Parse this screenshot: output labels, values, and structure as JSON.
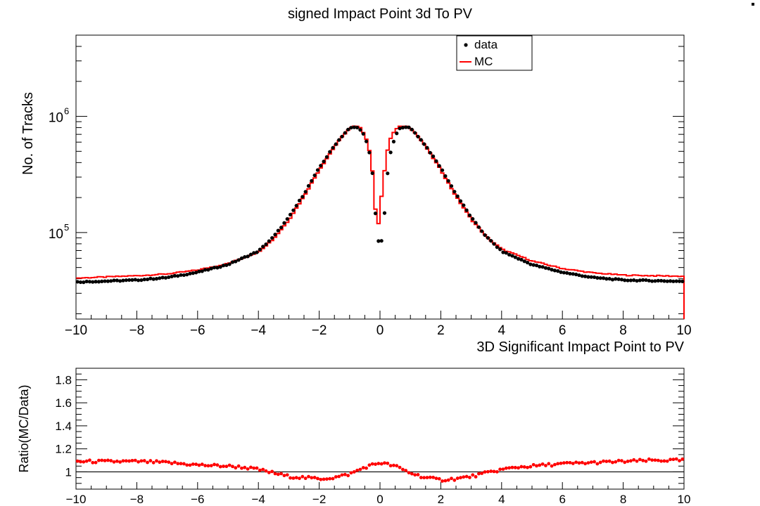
{
  "chart_data": [
    {
      "type": "step-and-scatter",
      "title": "signed Impact Point 3d To PV",
      "xlabel": "3D Significant Impact Point to PV",
      "ylabel": "No. of Tracks",
      "xlim": [
        -10,
        10
      ],
      "ylim": [
        18000,
        5000000
      ],
      "yscale": "log",
      "x_ticks": [
        "−10",
        "−8",
        "−6",
        "−4",
        "−2",
        "0",
        "2",
        "4",
        "6",
        "8",
        "10"
      ],
      "x_tick_values": [
        -10,
        -8,
        -6,
        -4,
        -2,
        0,
        2,
        4,
        6,
        8,
        10
      ],
      "y_tick_labels": [
        {
          "base": "10",
          "exp": "5",
          "value": 100000
        },
        {
          "base": "10",
          "exp": "6",
          "value": 1000000
        }
      ],
      "legend": {
        "placement": "top-center",
        "entries": [
          {
            "label": "data",
            "marker": "dot",
            "color": "#000000"
          },
          {
            "label": "MC",
            "marker": "line",
            "color": "#ff0000"
          }
        ]
      },
      "series": [
        {
          "name": "data",
          "style": "points",
          "color": "#000000",
          "points": [
            [
              -10,
              37500
            ],
            [
              -9,
              38200
            ],
            [
              -8,
              39000
            ],
            [
              -7,
              41000
            ],
            [
              -6,
              45500
            ],
            [
              -5,
              53000
            ],
            [
              -4,
              69000
            ],
            [
              -3.5,
              92000
            ],
            [
              -3,
              135000
            ],
            [
              -2.5,
              215000
            ],
            [
              -2,
              360000
            ],
            [
              -1.5,
              560000
            ],
            [
              -1.2,
              700000
            ],
            [
              -1,
              790000
            ],
            [
              -0.8,
              810000
            ],
            [
              -0.6,
              760000
            ],
            [
              -0.4,
              560000
            ],
            [
              -0.3,
              420000
            ],
            [
              -0.2,
              250000
            ],
            [
              -0.1,
              85000
            ],
            [
              0.1,
              85000
            ],
            [
              0.2,
              250000
            ],
            [
              0.3,
              420000
            ],
            [
              0.4,
              560000
            ],
            [
              0.6,
              770000
            ],
            [
              0.8,
              820000
            ],
            [
              1,
              790000
            ],
            [
              1.2,
              700000
            ],
            [
              1.5,
              560000
            ],
            [
              2,
              360000
            ],
            [
              2.5,
              215000
            ],
            [
              3,
              135000
            ],
            [
              3.5,
              92000
            ],
            [
              4,
              69000
            ],
            [
              5,
              53000
            ],
            [
              6,
              45500
            ],
            [
              7,
              41000
            ],
            [
              8,
              39000
            ],
            [
              9,
              38500
            ],
            [
              10,
              38000
            ]
          ]
        },
        {
          "name": "MC",
          "style": "step",
          "color": "#ff0000",
          "points": [
            [
              -10,
              40500
            ],
            [
              -9,
              41500
            ],
            [
              -8,
              42500
            ],
            [
              -7,
              44000
            ],
            [
              -6,
              47500
            ],
            [
              -5,
              54000
            ],
            [
              -4,
              68000
            ],
            [
              -3.5,
              88000
            ],
            [
              -3,
              128000
            ],
            [
              -2.5,
              205000
            ],
            [
              -2,
              345000
            ],
            [
              -1.5,
              545000
            ],
            [
              -1.2,
              690000
            ],
            [
              -1,
              785000
            ],
            [
              -0.8,
              830000
            ],
            [
              -0.6,
              780000
            ],
            [
              -0.4,
              600000
            ],
            [
              -0.3,
              430000
            ],
            [
              -0.2,
              270000
            ],
            [
              -0.1,
              92000
            ],
            [
              0.1,
              270000
            ],
            [
              0.2,
              430000
            ],
            [
              0.3,
              600000
            ],
            [
              0.4,
              700000
            ],
            [
              0.6,
              810000
            ],
            [
              0.8,
              830000
            ],
            [
              1,
              790000
            ],
            [
              1.2,
              700000
            ],
            [
              1.5,
              550000
            ],
            [
              2,
              345000
            ],
            [
              2.5,
              205000
            ],
            [
              3,
              130000
            ],
            [
              3.5,
              92000
            ],
            [
              4,
              72000
            ],
            [
              5,
              57000
            ],
            [
              6,
              49000
            ],
            [
              7,
              45000
            ],
            [
              8,
              43000
            ],
            [
              9,
              42500
            ],
            [
              10,
              42000
            ]
          ]
        }
      ]
    },
    {
      "type": "scatter",
      "xlabel": "",
      "ylabel": "Ratio(MC/Data)",
      "xlim": [
        -10,
        10
      ],
      "ylim": [
        0.85,
        1.9
      ],
      "x_ticks": [
        "−10",
        "−8",
        "−6",
        "−4",
        "−2",
        "0",
        "2",
        "4",
        "6",
        "8",
        "10"
      ],
      "x_tick_values": [
        -10,
        -8,
        -6,
        -4,
        -2,
        0,
        2,
        4,
        6,
        8,
        10
      ],
      "y_ticks": [
        "1",
        "1.2",
        "1.4",
        "1.6",
        "1.8"
      ],
      "y_tick_values": [
        1,
        1.2,
        1.4,
        1.6,
        1.8
      ],
      "reference_line": 1,
      "series": [
        {
          "name": "",
          "color": "#ff0000",
          "points": [
            [
              -10,
              1.09
            ],
            [
              -9,
              1.09
            ],
            [
              -8,
              1.09
            ],
            [
              -7,
              1.08
            ],
            [
              -6,
              1.06
            ],
            [
              -5,
              1.05
            ],
            [
              -4.5,
              1.04
            ],
            [
              -4,
              1.02
            ],
            [
              -3.5,
              0.99
            ],
            [
              -3,
              0.96
            ],
            [
              -2.5,
              0.95
            ],
            [
              -2,
              0.94
            ],
            [
              -1.5,
              0.95
            ],
            [
              -1,
              0.98
            ],
            [
              -0.5,
              1.04
            ],
            [
              0,
              1.08
            ],
            [
              0.5,
              1.05
            ],
            [
              1,
              0.99
            ],
            [
              1.5,
              0.95
            ],
            [
              2,
              0.93
            ],
            [
              2.5,
              0.94
            ],
            [
              3,
              0.96
            ],
            [
              3.5,
              0.99
            ],
            [
              4,
              1.02
            ],
            [
              4.5,
              1.04
            ],
            [
              5,
              1.05
            ],
            [
              6,
              1.07
            ],
            [
              7,
              1.08
            ],
            [
              8,
              1.09
            ],
            [
              9,
              1.1
            ],
            [
              10,
              1.1
            ]
          ]
        }
      ]
    }
  ]
}
